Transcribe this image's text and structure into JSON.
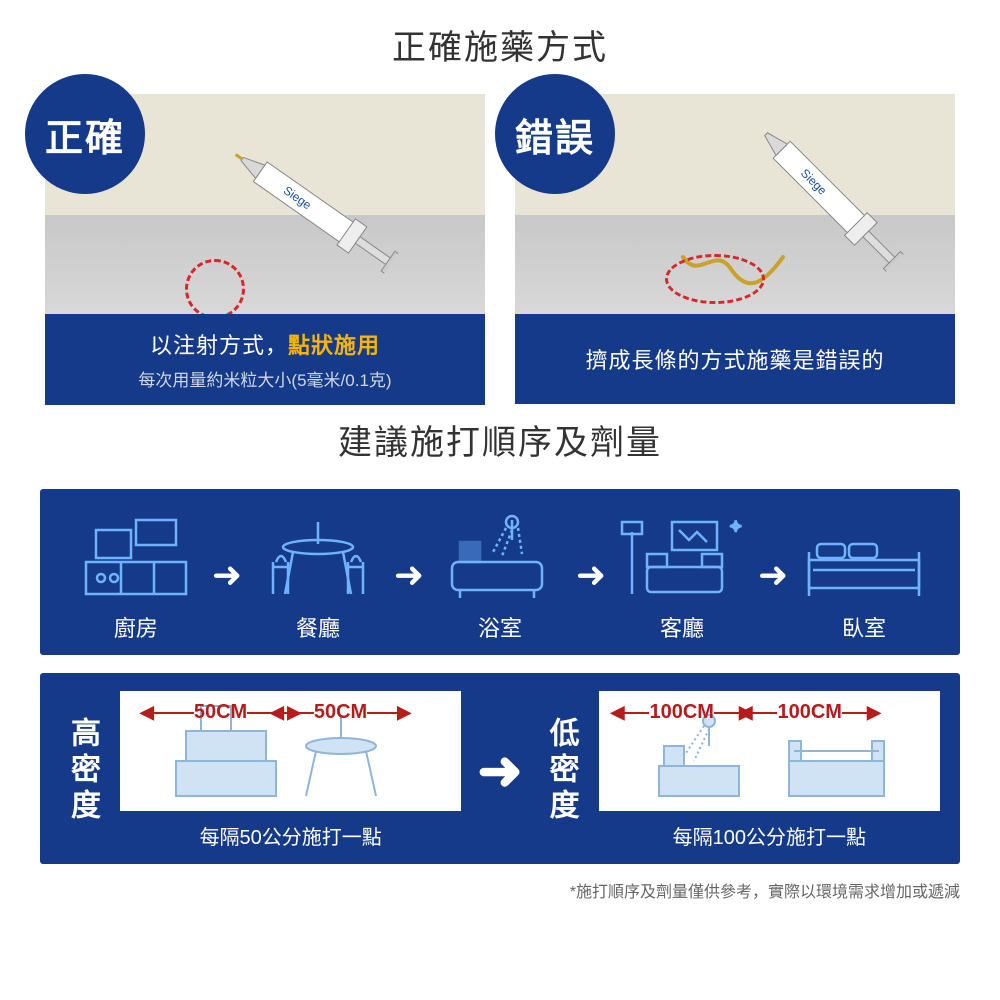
{
  "colors": {
    "primary": "#153a8a",
    "highlight": "#f7b500",
    "danger": "#d62828",
    "text": "#333333",
    "icon_stroke": "#6fb3ff"
  },
  "section1": {
    "title": "正確施藥方式",
    "correct": {
      "badge": "正確",
      "line1_pre": "以注射方式，",
      "line1_hl": "點狀施用",
      "line2": "每次用量約米粒大小(5毫米/0.1克)"
    },
    "wrong": {
      "badge": "錯誤",
      "line1": "擠成長條的方式施藥是錯誤的"
    }
  },
  "section2": {
    "title": "建議施打順序及劑量",
    "rooms": [
      {
        "label": "廚房",
        "icon": "kitchen"
      },
      {
        "label": "餐廳",
        "icon": "dining"
      },
      {
        "label": "浴室",
        "icon": "bath"
      },
      {
        "label": "客廳",
        "icon": "living"
      },
      {
        "label": "臥室",
        "icon": "bed"
      }
    ]
  },
  "section3": {
    "high": {
      "label": "高密度",
      "distance": "50CM",
      "caption": "每隔50公分施打一點"
    },
    "low": {
      "label": "低密度",
      "distance": "100CM",
      "caption": "每隔100公分施打一點"
    }
  },
  "footnote": "*施打順序及劑量僅供參考，實際以環境需求增加或遞減"
}
